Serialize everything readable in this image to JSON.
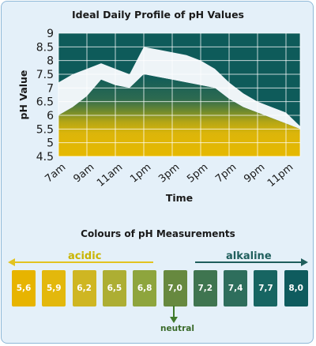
{
  "chart_title": "Ideal Daily Profile of pH Values",
  "chart_data": {
    "type": "area",
    "title": "Ideal Daily Profile of pH Values",
    "xlabel": "Time",
    "ylabel": "pH Value",
    "ylim": [
      4.5,
      9
    ],
    "yticks": [
      "4.5",
      "5",
      "5.5",
      "6",
      "6.5",
      "7",
      "7.5",
      "8",
      "8.5",
      "9"
    ],
    "categories": [
      "7am",
      "9am",
      "11am",
      "1pm",
      "3pm",
      "5pm",
      "7pm",
      "9pm",
      "11pm"
    ],
    "x": [
      "7am",
      "8am",
      "9am",
      "10am",
      "11am",
      "12pm",
      "1pm",
      "2pm",
      "3pm",
      "4pm",
      "5pm",
      "6pm",
      "7pm",
      "8pm",
      "9pm",
      "10pm",
      "11pm",
      "12am"
    ],
    "series": [
      {
        "values": [
          7.2,
          7.5,
          7.7,
          7.9,
          7.7,
          7.5,
          8.5,
          8.4,
          8.3,
          8.2,
          8.0,
          7.7,
          7.2,
          6.8,
          6.5,
          6.3,
          6.1,
          5.6
        ]
      },
      {
        "values": [
          6.0,
          6.3,
          6.7,
          7.3,
          7.1,
          7.0,
          7.5,
          7.4,
          7.3,
          7.2,
          7.1,
          7.0,
          6.6,
          6.3,
          6.1,
          5.9,
          5.7,
          5.5
        ]
      }
    ],
    "grid": true
  },
  "swatches_title": "Colours of pH Measurements",
  "acidic_label": "acidic",
  "alkaline_label": "alkaline",
  "neutral_label": "neutral",
  "swatches": [
    {
      "label": "5,6",
      "color": "#e7b400"
    },
    {
      "label": "5,9",
      "color": "#e3b80c"
    },
    {
      "label": "6,2",
      "color": "#cfb622"
    },
    {
      "label": "6,5",
      "color": "#adae33"
    },
    {
      "label": "6,8",
      "color": "#8ea53d"
    },
    {
      "label": "7,0",
      "color": "#67893f"
    },
    {
      "label": "7,2",
      "color": "#3f7550"
    },
    {
      "label": "7,4",
      "color": "#2e6e5c"
    },
    {
      "label": "7,7",
      "color": "#176562"
    },
    {
      "label": "8,0",
      "color": "#0e5b5e"
    }
  ],
  "colors": {
    "dark_green": "#0e5b5a",
    "yellow": "#e5b800",
    "band": "#eef4f7",
    "acidic": "#e2c320",
    "alkaline": "#1f5e5c",
    "neutral_arrow": "#3f7a2a"
  }
}
